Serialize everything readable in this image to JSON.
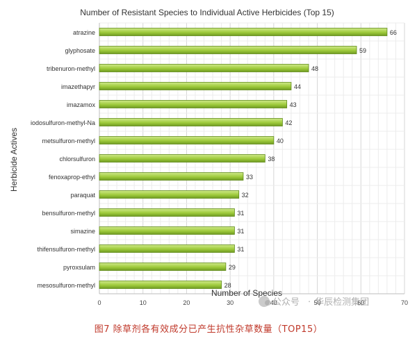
{
  "chart_data": {
    "type": "bar",
    "orientation": "horizontal",
    "title": "Number of Resistant Species to Individual Active Herbicides (Top 15)",
    "xlabel": "Number of Species",
    "ylabel": "Herbicide Actives",
    "xlim": [
      0,
      70
    ],
    "xticks": [
      "0",
      "10",
      "20",
      "30",
      "40",
      "50",
      "60",
      "70"
    ],
    "grid": true,
    "categories": [
      "atrazine",
      "glyphosate",
      "tribenuron-methyl",
      "imazethapyr",
      "imazamox",
      "iodosulfuron-methyl-Na",
      "metsulfuron-methyl",
      "chlorsulfuron",
      "fenoxaprop-ethyl",
      "paraquat",
      "bensulfuron-methyl",
      "simazine",
      "thifensulfuron-methyl",
      "pyroxsulam",
      "mesosulfuron-methyl"
    ],
    "values": [
      66,
      59,
      48,
      44,
      43,
      42,
      40,
      38,
      33,
      32,
      31,
      31,
      31,
      29,
      28
    ],
    "colors": {
      "bar_light": "#cfe98a",
      "bar_mid": "#9fcb3c",
      "bar_dark": "#5f8a18",
      "grid": "#e2e2e2",
      "text": "#333333"
    }
  },
  "caption": "图7 除草剂各有效成分已产生抗性杂草数量（TOP15）",
  "watermark": {
    "channel": "公众号",
    "org": "华辰检测集团"
  }
}
